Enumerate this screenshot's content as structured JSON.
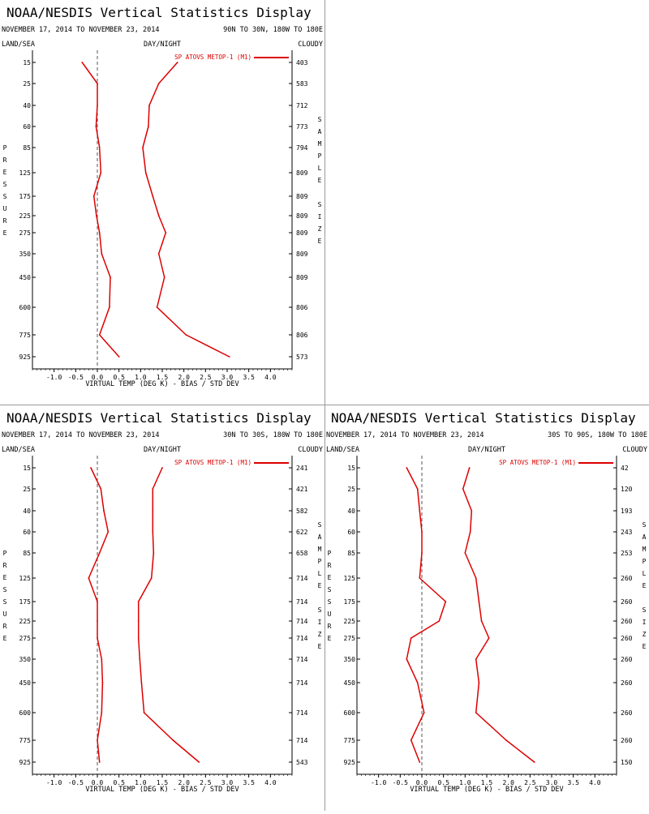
{
  "colors": {
    "series": "#dd0000",
    "zero_line": "#555555",
    "axis": "#000000"
  },
  "labels": {
    "title": "NOAA/NESDIS Vertical Statistics Display",
    "land_sea": "LAND/SEA",
    "day_night": "DAY/NIGHT",
    "cloudy": "CLOUDY",
    "xlabel": "VIRTUAL TEMP (DEG K) - BIAS / STD DEV",
    "ylabel": "PRESSURE",
    "right_label": "SAMPLE SIZE",
    "legend": "SP ATOVS METOP-1 (M1)",
    "pressure_levels": [
      "15",
      "25",
      "40",
      "60",
      "85",
      "125",
      "175",
      "225",
      "275",
      "350",
      "450",
      "600",
      "775",
      "925"
    ],
    "x_ticks": [
      "-1.0",
      "-0.5",
      "0.0",
      "0.5",
      "1.0",
      "1.5",
      "2.0",
      "2.5",
      "3.0",
      "3.5",
      "4.0"
    ]
  },
  "chart_data": [
    {
      "type": "line",
      "title": "NOAA/NESDIS Vertical Statistics Display",
      "date_range": "NOVEMBER 17, 2014 TO NOVEMBER 23, 2014",
      "region": "90N TO 30N, 180W TO 180E",
      "xlabel": "VIRTUAL TEMP (DEG K) - BIAS / STD DEV",
      "ylabel": "PRESSURE",
      "xlim": [
        -1.5,
        4.5
      ],
      "legend": "top-right",
      "pressure": [
        15,
        25,
        40,
        60,
        85,
        125,
        175,
        225,
        275,
        350,
        450,
        600,
        775,
        925
      ],
      "sample_size": [
        "403",
        "583",
        "712",
        "773",
        "794",
        "809",
        "809",
        "809",
        "809",
        "809",
        "809",
        "806",
        "806",
        "573"
      ],
      "series": [
        {
          "name": "SP ATOVS METOP-1 (M1)",
          "role": "bias",
          "values": [
            -0.35,
            0.0,
            0.0,
            -0.03,
            0.05,
            0.08,
            -0.08,
            -0.02,
            0.05,
            0.1,
            0.3,
            0.28,
            0.05,
            0.5
          ]
        },
        {
          "name": "SP ATOVS METOP-1 (M1)",
          "role": "std_dev",
          "values": [
            1.85,
            1.42,
            1.2,
            1.18,
            1.05,
            1.12,
            1.28,
            1.42,
            1.58,
            1.42,
            1.55,
            1.38,
            2.05,
            3.05
          ]
        }
      ]
    },
    {
      "type": "line",
      "title": "NOAA/NESDIS Vertical Statistics Display",
      "date_range": "NOVEMBER 17, 2014 TO NOVEMBER 23, 2014",
      "region": "30N TO 30S, 180W TO 180E",
      "xlabel": "VIRTUAL TEMP (DEG K) - BIAS / STD DEV",
      "ylabel": "PRESSURE",
      "xlim": [
        -1.5,
        4.5
      ],
      "legend": "top-right",
      "pressure": [
        15,
        25,
        40,
        60,
        85,
        125,
        175,
        225,
        275,
        350,
        450,
        600,
        775,
        925
      ],
      "sample_size": [
        "241",
        "421",
        "582",
        "622",
        "658",
        "714",
        "714",
        "714",
        "714",
        "714",
        "714",
        "714",
        "714",
        "543"
      ],
      "series": [
        {
          "name": "SP ATOVS METOP-1 (M1)",
          "role": "bias",
          "values": [
            -0.15,
            0.08,
            0.15,
            0.25,
            0.05,
            -0.2,
            0.0,
            0.0,
            0.0,
            0.1,
            0.12,
            0.1,
            0.0,
            0.05
          ]
        },
        {
          "name": "SP ATOVS METOP-1 (M1)",
          "role": "std_dev",
          "values": [
            1.5,
            1.28,
            1.28,
            1.28,
            1.3,
            1.25,
            0.95,
            0.95,
            0.95,
            0.98,
            1.02,
            1.08,
            1.75,
            2.35
          ]
        }
      ]
    },
    {
      "type": "line",
      "title": "NOAA/NESDIS Vertical Statistics Display",
      "date_range": "NOVEMBER 17, 2014 TO NOVEMBER 23, 2014",
      "region": "30S TO 90S, 180W TO 180E",
      "xlabel": "VIRTUAL TEMP (DEG K) - BIAS / STD DEV",
      "ylabel": "PRESSURE",
      "xlim": [
        -1.5,
        4.5
      ],
      "legend": "top-right",
      "pressure": [
        15,
        25,
        40,
        60,
        85,
        125,
        175,
        225,
        275,
        350,
        450,
        600,
        775,
        925
      ],
      "sample_size": [
        "42",
        "120",
        "193",
        "243",
        "253",
        "260",
        "260",
        "260",
        "260",
        "260",
        "260",
        "260",
        "260",
        "150"
      ],
      "series": [
        {
          "name": "SP ATOVS METOP-1 (M1)",
          "role": "bias",
          "values": [
            -0.35,
            -0.1,
            -0.05,
            0.0,
            0.0,
            -0.05,
            0.55,
            0.4,
            -0.25,
            -0.35,
            -0.1,
            0.05,
            -0.25,
            -0.05
          ]
        },
        {
          "name": "SP ATOVS METOP-1 (M1)",
          "role": "std_dev",
          "values": [
            1.1,
            0.95,
            1.15,
            1.12,
            1.0,
            1.25,
            1.32,
            1.38,
            1.55,
            1.25,
            1.32,
            1.25,
            1.95,
            2.6
          ]
        }
      ]
    }
  ]
}
